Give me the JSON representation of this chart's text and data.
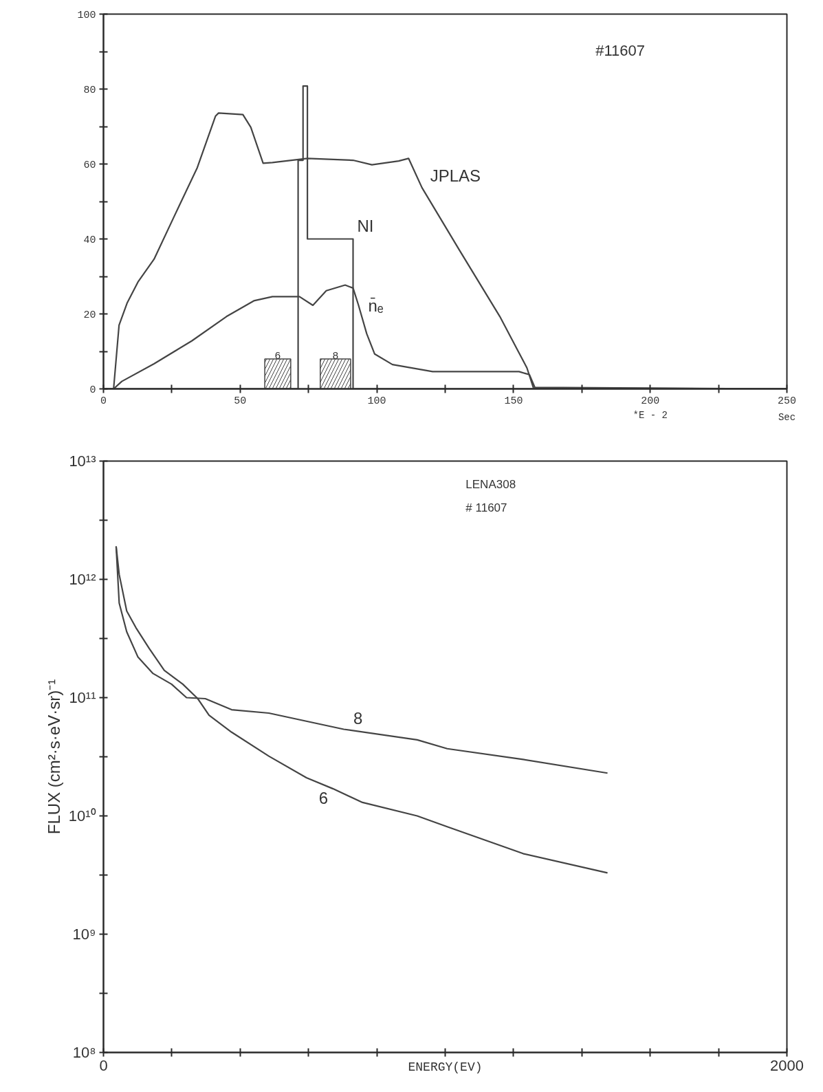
{
  "chart_data": [
    {
      "type": "line",
      "xlim": [
        0,
        250
      ],
      "ylim": [
        0,
        100
      ],
      "xticks": [
        0,
        {
          "value": 25,
          "label": null
        },
        50,
        {
          "value": 75,
          "label": null
        },
        100,
        {
          "value": 125,
          "label": null
        },
        150,
        {
          "value": 175,
          "label": null
        },
        200,
        {
          "value": 225,
          "label": null
        },
        250
      ],
      "yticks": [
        0,
        {
          "value": 10,
          "label": null
        },
        20,
        {
          "value": 30,
          "label": null
        },
        40,
        {
          "value": 50,
          "label": null
        },
        60,
        {
          "value": 70,
          "label": null
        },
        80,
        {
          "value": 90,
          "label": null
        },
        100
      ],
      "xlabel": "Sec",
      "annotations": [
        "#11607",
        "*E - 2"
      ],
      "bands": [
        {
          "axis": "x",
          "from": 59,
          "to": 68.5,
          "label": "6"
        },
        {
          "axis": "x",
          "from": 79.3,
          "to": 90.4,
          "label": "8"
        }
      ],
      "series": [
        {
          "name": "JPLAS",
          "color": "#444444",
          "x": [
            0,
            3.7,
            5.7,
            8.7,
            12.6,
            18.5,
            27.4,
            34.3,
            41,
            42.1,
            51,
            53.9,
            58.4,
            61.8,
            74.6,
            91.3,
            98.2,
            108,
            111.6,
            116.5,
            130.3,
            145,
            154.9,
            157.3,
            250
          ],
          "values": [
            0,
            0,
            17,
            23,
            28.5,
            34.6,
            48.4,
            59,
            72.8,
            73.6,
            73.2,
            69.8,
            60.2,
            60.4,
            61.5,
            61,
            59.8,
            60.8,
            61.5,
            53.7,
            36.9,
            19.3,
            5.6,
            0.2,
            0
          ]
        },
        {
          "name": "NI",
          "color": "#444444",
          "x": [
            0,
            71.2,
            71.2,
            73,
            73,
            74.6,
            74.6,
            91.3,
            91.3,
            250
          ],
          "values": [
            0,
            0,
            61,
            61,
            80.8,
            80.8,
            40,
            40,
            0,
            0
          ]
        },
        {
          "name": "n̄ₑ",
          "color": "#444444",
          "x": [
            0,
            3.7,
            6.7,
            18.5,
            32.3,
            45,
            55,
            61.8,
            71.7,
            76.6,
            81.5,
            88.4,
            91.3,
            93.3,
            96.3,
            99.2,
            105.7,
            120.4,
            152,
            155.8,
            157.8,
            250
          ],
          "values": [
            0,
            0,
            2,
            6.7,
            12.8,
            19.3,
            23.5,
            24.6,
            24.6,
            22.3,
            26.2,
            27.7,
            26.9,
            22.3,
            14.7,
            9.3,
            6.5,
            4.6,
            4.6,
            3.8,
            0.4,
            0
          ]
        }
      ]
    },
    {
      "type": "line",
      "log": "y",
      "xlim": [
        0,
        2000
      ],
      "ylim": [
        100000000.0,
        10000000000000.0
      ],
      "xticks": [
        0,
        {
          "value": 200,
          "label": null
        },
        {
          "value": 400,
          "label": null
        },
        {
          "value": 600,
          "label": null
        },
        {
          "value": 800,
          "label": null
        },
        {
          "value": 1000,
          "label": null
        },
        {
          "value": 1200,
          "label": null
        },
        {
          "value": 1400,
          "label": null
        },
        {
          "value": 1600,
          "label": null
        },
        {
          "value": 1800,
          "label": null
        },
        2000
      ],
      "yticks": [
        {
          "value": 100000000.0,
          "label": "10⁸"
        },
        {
          "value": 316000000.0,
          "label": null
        },
        {
          "value": 1000000000.0,
          "label": "10⁹"
        },
        {
          "value": 3160000000.0,
          "label": null
        },
        {
          "value": 10000000000.0,
          "label": "10¹⁰"
        },
        {
          "value": 31600000000.0,
          "label": null
        },
        {
          "value": 100000000000.0,
          "label": "10¹¹"
        },
        {
          "value": 316000000000.0,
          "label": null
        },
        {
          "value": 1000000000000.0,
          "label": "10¹²"
        },
        {
          "value": 3160000000000.0,
          "label": null
        },
        {
          "value": 10000000000000.0,
          "label": "10¹³"
        }
      ],
      "xlabel": "ENERGY(EV)",
      "ylabel": "FLUX (cm²·s·eV·sr)⁻¹",
      "annotations": [
        "LENA308",
        "# 11607"
      ],
      "series": [
        {
          "name": "8",
          "color": "#444444",
          "x": [
            37,
            46,
            68,
            101,
            145,
            199,
            243,
            298,
            375,
            484,
            703,
            918,
            1006,
            1228,
            1475
          ],
          "values": [
            1900000000000.0,
            630000000000.0,
            360000000000.0,
            220000000000.0,
            160000000000.0,
            130000000000.0,
            100000000000.0,
            98000000000.0,
            79000000000.0,
            74000000000.0,
            54000000000.0,
            44000000000.0,
            37000000000.0,
            30000000000.0,
            23000000000.0
          ]
        },
        {
          "name": "6",
          "color": "#444444",
          "x": [
            37,
            46,
            68,
            95,
            134,
            178,
            232,
            276,
            309,
            375,
            484,
            594,
            671,
            758,
            918,
            1006,
            1228,
            1475
          ],
          "values": [
            1900000000000.0,
            1100000000000.0,
            540000000000.0,
            390000000000.0,
            260000000000.0,
            170000000000.0,
            130000000000.0,
            98000000000.0,
            71000000000.0,
            51000000000.0,
            32000000000.0,
            21000000000.0,
            17000000000.0,
            13000000000.0,
            10000000000.0,
            8100000000.0,
            4800000000.0,
            3300000000.0
          ]
        }
      ]
    }
  ]
}
